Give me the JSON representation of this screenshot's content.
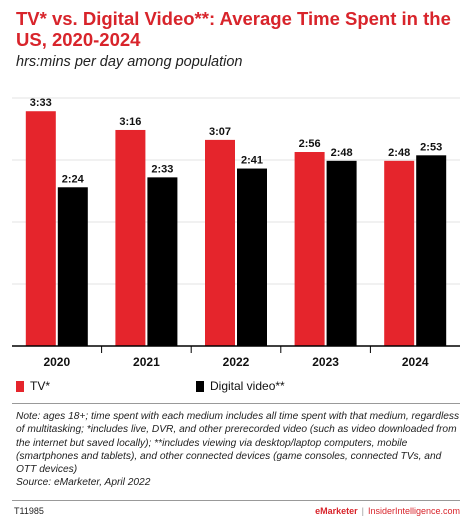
{
  "chart_data": {
    "type": "bar",
    "title": "TV* vs. Digital Video**: Average Time Spent in the US, 2020-2024",
    "subtitle": "hrs:mins per day among population",
    "categories": [
      "2020",
      "2021",
      "2022",
      "2023",
      "2024"
    ],
    "series": [
      {
        "name": "TV*",
        "color": "#e5252c",
        "values": [
          213,
          196,
          187,
          176,
          168
        ],
        "labels": [
          "3:33",
          "3:16",
          "3:07",
          "2:56",
          "2:48"
        ]
      },
      {
        "name": "Digital video**",
        "color": "#000000",
        "values": [
          144,
          153,
          161,
          168,
          173
        ],
        "labels": [
          "2:24",
          "2:33",
          "2:41",
          "2:48",
          "2:53"
        ]
      }
    ],
    "ylim": [
      0,
      225
    ],
    "grid": true,
    "legend": "bottom-left"
  },
  "note": "Note: ages 18+; time spent with each medium includes all time spent with that medium, regardless of multitasking; *includes live, DVR, and other prerecorded video (such as video downloaded from the internet but saved locally); **includes viewing via desktop/laptop computers, mobile (smartphones and tablets), and other connected devices (game consoles, connected TVs, and OTT devices)",
  "source": "Source: eMarketer, April 2022",
  "footer": {
    "id": "T11985",
    "brand_a": "eMarketer",
    "separator": "|",
    "brand_b": "InsiderIntelligence.com"
  }
}
